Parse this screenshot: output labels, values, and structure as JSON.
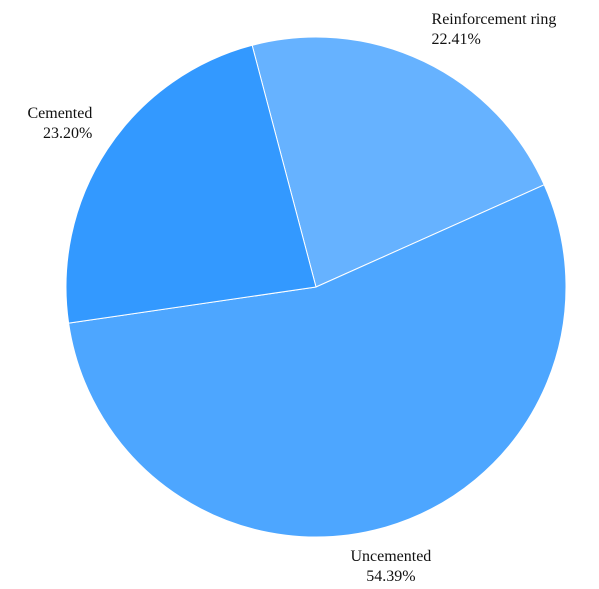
{
  "chart_data": {
    "type": "pie",
    "categories": [
      "Reinforcement ring",
      "Uncemented",
      "Cemented"
    ],
    "values": [
      22.41,
      54.39,
      23.2
    ],
    "value_labels": [
      "22.41%",
      "54.39%",
      "23.20%"
    ],
    "colors": [
      "#66b2ff",
      "#4da6ff",
      "#3399ff"
    ]
  }
}
